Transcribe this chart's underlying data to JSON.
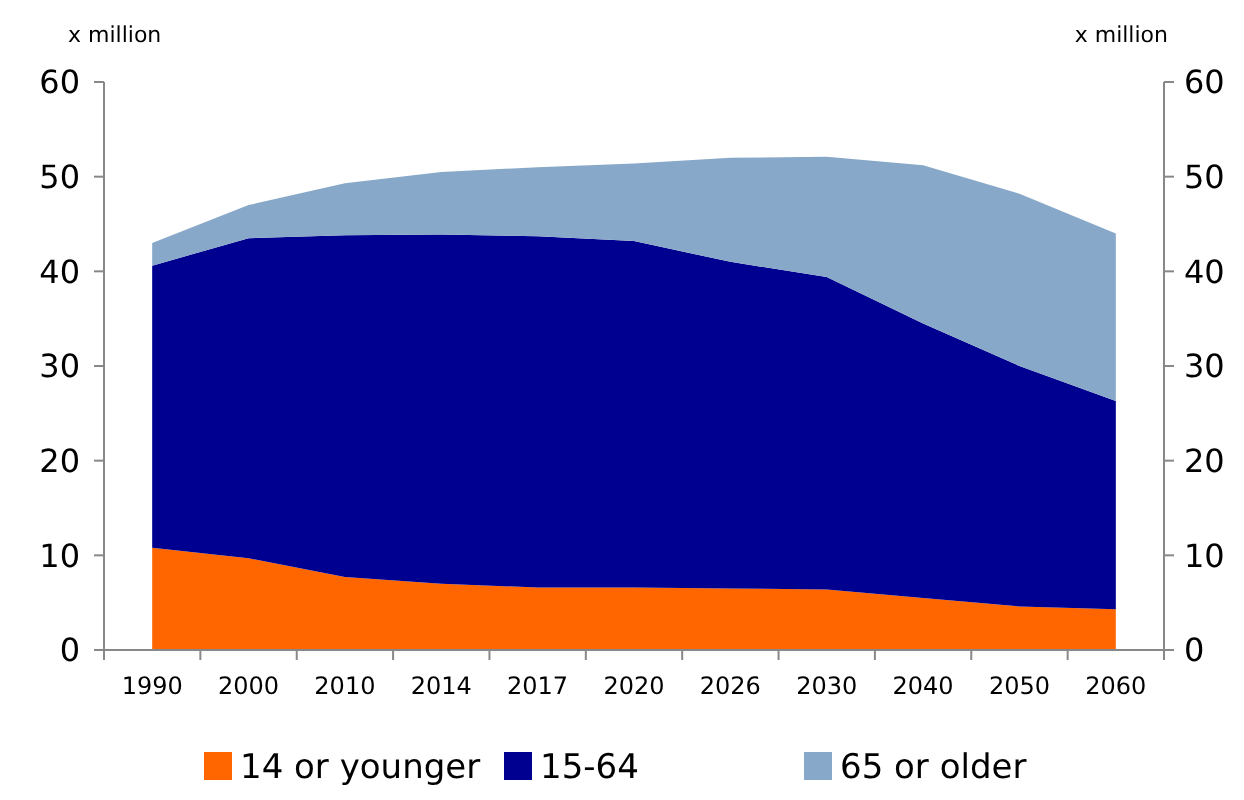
{
  "chart_data": {
    "type": "area",
    "stacked": true,
    "ylabel": "x million",
    "y2label": "x million",
    "categories": [
      "1990",
      "2000",
      "2010",
      "2014",
      "2017",
      "2020",
      "2026",
      "2030",
      "2040",
      "2050",
      "2060"
    ],
    "series": [
      {
        "name": "14 or younger",
        "color": "#ff6600",
        "values": [
          10.8,
          9.7,
          7.7,
          7,
          6.6,
          6.6,
          6.5,
          6.4,
          5.5,
          4.6,
          4.3
        ]
      },
      {
        "name": "15-64",
        "color": "#000090",
        "values": [
          29.8,
          33.8,
          36.1,
          36.9,
          37.1,
          36.6,
          34.5,
          33,
          29,
          25.4,
          22
        ]
      },
      {
        "name": "65 or older",
        "color": "#87a8c8",
        "values": [
          2.4,
          3.5,
          5.5,
          6.6,
          7.3,
          8.2,
          11,
          12.7,
          16.7,
          18.2,
          17.7
        ]
      }
    ],
    "ylim": [
      0,
      60
    ],
    "yticks": [
      0,
      10,
      20,
      30,
      40,
      50,
      60
    ],
    "y2lim": [
      0,
      60
    ],
    "y2ticks": [
      0,
      10,
      20,
      30,
      40,
      50,
      60
    ],
    "grid": false,
    "legend": "bottom"
  }
}
